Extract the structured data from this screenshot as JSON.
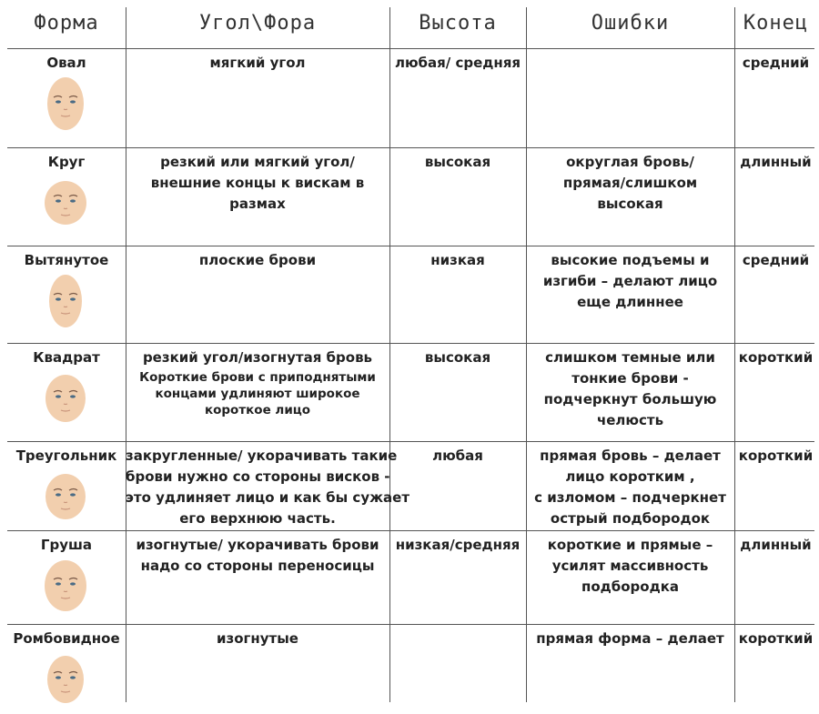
{
  "header": [
    "Форма",
    "Угол\\Фора",
    "Высота",
    "Ошибки",
    "Конец"
  ],
  "rows": [
    {
      "shape": "Овал",
      "angle": [
        "мягкий угол"
      ],
      "height": [
        "любая/ средняя"
      ],
      "errors": [],
      "end": "средний"
    },
    {
      "shape": "Круг",
      "angle": [
        "резкий или мягкий угол/",
        "внешние концы к вискам в",
        "размах"
      ],
      "height": [
        "высокая"
      ],
      "errors": [
        "округлая бровь/",
        "прямая/слишком",
        "высокая"
      ],
      "end": "длинный"
    },
    {
      "shape": "Вытянутое",
      "angle": [
        "плоские брови"
      ],
      "height": [
        "низкая"
      ],
      "errors": [
        "высокие подъемы и",
        "изгиби – делают лицо",
        "еще длиннее"
      ],
      "end": "средний"
    },
    {
      "shape": "Квадрат",
      "angle": [
        "резкий угол/изогнутая бровь"
      ],
      "angle_note": [
        "Короткие брови с приподнятыми",
        "концами удлиняют широкое",
        "короткое лицо"
      ],
      "height": [
        "высокая"
      ],
      "errors": [
        "слишком темные  или",
        "тонкие брови -",
        "подчеркнут  большую",
        "челюсть"
      ],
      "end": "короткий"
    },
    {
      "shape": "Треугольник",
      "angle": [
        "закругленные/ укорачивать такие",
        "брови нужно со стороны висков -",
        "это удлиняет лицо и как бы сужает",
        "его верхнюю часть."
      ],
      "height": [
        "любая"
      ],
      "errors": [
        "прямая бровь – делает",
        "лицо коротким ,",
        "с изломом – подчеркнет",
        "острый подбородок"
      ],
      "end": "короткий"
    },
    {
      "shape": "Груша",
      "angle": [
        "изогнутые/ укорачивать брови",
        "надо со стороны переносицы"
      ],
      "height": [
        "низкая/средняя"
      ],
      "errors": [
        "короткие и прямые –",
        "усилят массивность",
        "подбородка"
      ],
      "end": "длинный"
    },
    {
      "shape": "Ромбовидное",
      "angle": [
        "изогнутые"
      ],
      "height": [],
      "errors": [
        "прямая форма – делает"
      ],
      "end": "короткий"
    }
  ]
}
